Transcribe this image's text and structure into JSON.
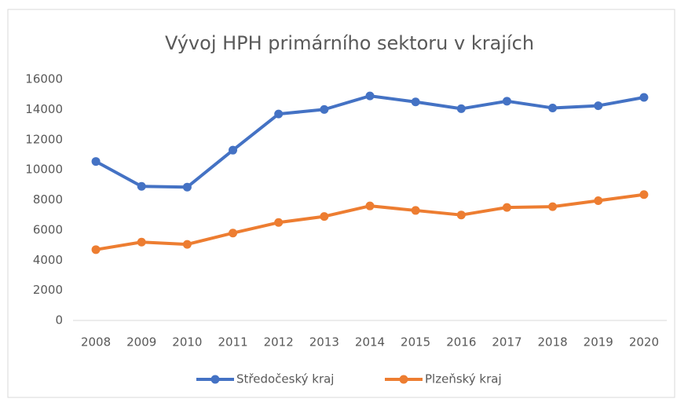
{
  "chart_data": {
    "type": "line",
    "title": "Vývoj HPH primárního sektoru v krajích",
    "categories": [
      "2008",
      "2009",
      "2010",
      "2011",
      "2012",
      "2013",
      "2014",
      "2015",
      "2016",
      "2017",
      "2018",
      "2019",
      "2020"
    ],
    "series": [
      {
        "name": "Středočeský kraj",
        "color": "#4472c4",
        "values": [
          10550,
          8900,
          8850,
          11300,
          13700,
          14000,
          14900,
          14500,
          14050,
          14550,
          14100,
          14250,
          14800
        ]
      },
      {
        "name": "Plzeňský kraj",
        "color": "#ed7d31",
        "values": [
          4700,
          5200,
          5050,
          5800,
          6500,
          6900,
          7600,
          7300,
          7000,
          7500,
          7550,
          7950,
          8350
        ]
      }
    ],
    "ylim": [
      0,
      16000
    ],
    "yticks": [
      0,
      2000,
      4000,
      6000,
      8000,
      10000,
      12000,
      14000,
      16000
    ],
    "grid": false,
    "legend": "bottom"
  }
}
